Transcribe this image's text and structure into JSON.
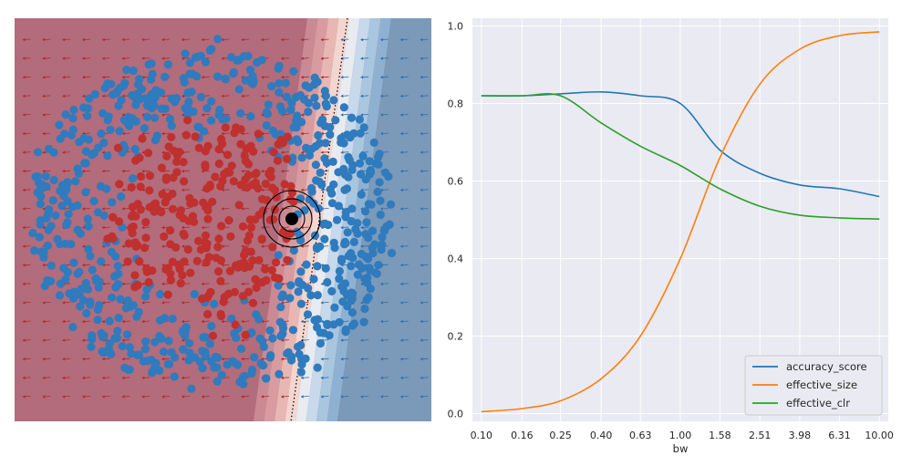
{
  "chart_data": [
    {
      "type": "scatter",
      "panel": "decision-map",
      "title": "",
      "xlabel": "",
      "ylabel": "",
      "grid": false,
      "colors": {
        "class_red": "#c0302e",
        "class_blue": "#2f7bbd",
        "instance": "#000000",
        "region_red": "#b26c7c",
        "region_blue": "#7b99b8"
      },
      "classes": [
        "red",
        "blue"
      ],
      "instance_marker": "black-dot-with-concentric-circles",
      "boundary": "dotted-line"
    },
    {
      "type": "line",
      "panel": "bandwidth-sweep",
      "title": "",
      "xlabel": "bw",
      "ylabel": "",
      "grid": true,
      "legend_position": "bottom-right",
      "x_ticks": [
        "0.10",
        "0.16",
        "0.25",
        "0.40",
        "0.63",
        "1.00",
        "1.58",
        "2.51",
        "3.98",
        "6.31",
        "10.00"
      ],
      "y_ticks": [
        "0.0",
        "0.2",
        "0.4",
        "0.6",
        "0.8",
        "1.0"
      ],
      "ylim": [
        -0.02,
        1.02
      ],
      "x_scale": "log",
      "x": [
        0.1,
        0.16,
        0.25,
        0.4,
        0.63,
        1.0,
        1.58,
        2.51,
        3.98,
        6.31,
        10.0
      ],
      "series": [
        {
          "name": "accuracy_score",
          "color": "#1f77b4",
          "values": [
            0.82,
            0.82,
            0.825,
            0.83,
            0.82,
            0.8,
            0.68,
            0.62,
            0.59,
            0.58,
            0.56
          ]
        },
        {
          "name": "effective_size",
          "color": "#ff7f0e",
          "values": [
            0.005,
            0.013,
            0.033,
            0.09,
            0.2,
            0.4,
            0.66,
            0.85,
            0.94,
            0.975,
            0.985
          ]
        },
        {
          "name": "effective_clr",
          "color": "#2ca02c",
          "values": [
            0.82,
            0.82,
            0.82,
            0.75,
            0.69,
            0.64,
            0.58,
            0.535,
            0.512,
            0.505,
            0.502
          ]
        }
      ]
    }
  ]
}
